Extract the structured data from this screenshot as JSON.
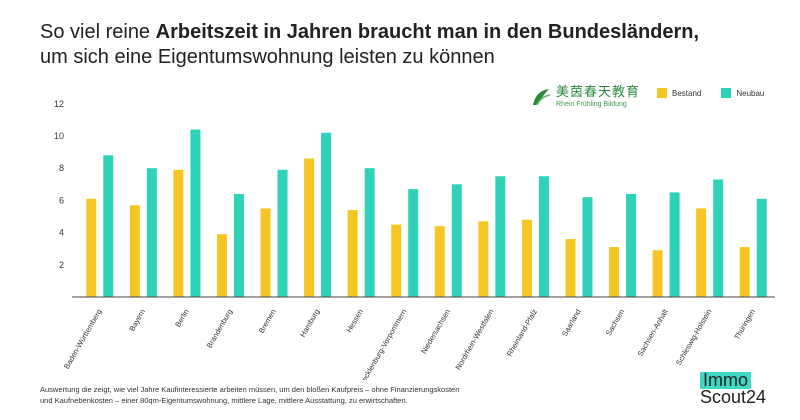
{
  "title": {
    "line1_prefix": "So viel reine ",
    "line1_bold": "Arbeitszeit in Jahren braucht man in den Bundesländern,",
    "line2": "um sich eine Eigentumswohnung leisten zu können"
  },
  "logo": {
    "cn": "美茵春天教育",
    "en": "Rhein Frühling Bildung"
  },
  "colors": {
    "bestand": "#f5c623",
    "neubau": "#2ed3b7",
    "axis": "#444444",
    "tick_text": "#333333",
    "brand_accent": "#3fd8c2"
  },
  "chart_data": {
    "type": "bar",
    "categories": [
      "Baden-Württemberg",
      "Bayern",
      "Berlin",
      "Brandenburg",
      "Bremen",
      "Hamburg",
      "Hessen",
      "Mecklenburg-Vorpommern",
      "Niedersachsen",
      "Nordrhein-Westfalen",
      "Rheinland-Pfalz",
      "Saarland",
      "Sachsen",
      "Sachsen-Anhalt",
      "Schleswig-Holstein",
      "Thüringen"
    ],
    "series": [
      {
        "name": "Bestand",
        "values": [
          6.1,
          5.7,
          7.9,
          3.9,
          5.5,
          8.6,
          5.4,
          4.5,
          4.4,
          4.7,
          4.8,
          3.6,
          3.1,
          2.9,
          5.5,
          3.1
        ]
      },
      {
        "name": "Neubau",
        "values": [
          8.8,
          8.0,
          10.4,
          6.4,
          7.9,
          10.2,
          8.0,
          6.7,
          7.0,
          7.5,
          7.5,
          6.2,
          6.4,
          6.5,
          7.3,
          6.1
        ]
      }
    ],
    "yticks": [
      2,
      4,
      6,
      8,
      10,
      12
    ],
    "ylim": [
      0,
      12
    ],
    "grid": false,
    "legend_position": "top-right"
  },
  "footnote": {
    "line1": "Auswertung die zeigt, wie viel Jahre Kaufinteressierte arbeiten müssen, um den bloßen Kaufpreis – ohne Finanzierungskosten",
    "line2": "und Kaufnebenkosten – einer 80qm-Eigentumswohnung, mittlere Lage, mittlere Ausstattung, zu erwirtschaften."
  },
  "brand": {
    "line1": "Immo",
    "line2": "Scout24"
  }
}
